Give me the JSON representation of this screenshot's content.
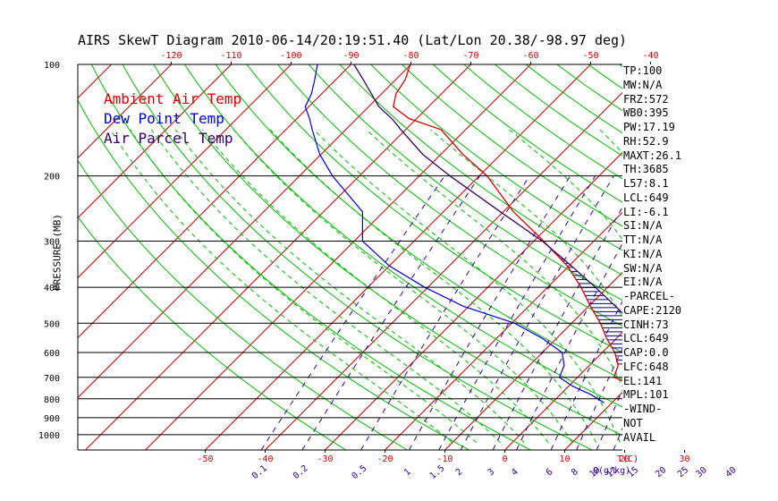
{
  "title": "AIRS SkewT Diagram 2010-06-14/20:19:51.40 (Lat/Lon 20.38/-98.97 deg)",
  "legend": {
    "ambient": "Ambient Air Temp",
    "dewpoint": "Dew Point Temp",
    "parcel": "Air Parcel Temp"
  },
  "colors": {
    "ambient": "#dd0000",
    "dewpoint": "#0000dd",
    "parcel": "#330066",
    "isotherm": "#cc0000",
    "dry_adiabat": "#00bb00",
    "moist_adiabat": "#00bb00",
    "mixing_ratio": "#330099",
    "hatch": "#000080"
  },
  "indices": [
    "TP:100",
    "MW:N/A",
    "FRZ:572",
    "WB0:395",
    "PW:17.19",
    "RH:52.9",
    "MAXT:26.1",
    "TH:3685",
    "L57:8.1",
    "LCL:649",
    "LI:-6.1",
    "SI:N/A",
    "TT:N/A",
    "KI:N/A",
    "SW:N/A",
    "EI:N/A",
    "-PARCEL-",
    "CAPE:2120",
    "CINH:73",
    "LCL:649",
    "CAP:0.0",
    "LFC:648",
    "EL:141",
    "MPL:101",
    "-WIND-",
    "NOT",
    "AVAIL"
  ],
  "chart_data": {
    "type": "line",
    "title": "AIRS SkewT Diagram 2010-06-14/20:19:51.40 (Lat/Lon 20.38/-98.97 deg)",
    "ylabel": "PRESSURE (MB)",
    "xlabel": "T(C)",
    "mixing_ratio_unit": "Q(g/kg)",
    "y_scale": "log",
    "ylim": [
      1100,
      100
    ],
    "pressure_ticks": [
      100,
      200,
      300,
      400,
      500,
      600,
      700,
      800,
      900,
      1000
    ],
    "bottom_temp_ticks": [
      -50,
      -40,
      -30,
      -20,
      -10,
      0,
      10,
      20,
      30
    ],
    "top_temp_ticks": [
      -120,
      -110,
      -100,
      -90,
      -80,
      -70,
      -60,
      -50,
      -40
    ],
    "mixing_ratio_ticks": [
      "0.1",
      "0.2",
      "0.5",
      "1",
      "1.5",
      "2",
      "3",
      "4",
      "6",
      "8",
      "10",
      "12",
      "15",
      "20",
      "25",
      "30",
      "40"
    ],
    "grid": true,
    "series": [
      {
        "name": "Ambient Air Temp",
        "points": [
          [
            820,
            30.1
          ],
          [
            780,
            19.9
          ],
          [
            740,
            11.2
          ],
          [
            700,
            6.1
          ],
          [
            650,
            4.8
          ],
          [
            600,
            2.1
          ],
          [
            550,
            -1.6
          ],
          [
            500,
            -5.2
          ],
          [
            450,
            -9.7
          ],
          [
            400,
            -14.4
          ],
          [
            350,
            -20.3
          ],
          [
            300,
            -28.4
          ],
          [
            250,
            -38.3
          ],
          [
            200,
            -48.7
          ],
          [
            175,
            -56.3
          ],
          [
            150,
            -64.1
          ],
          [
            140,
            -71.3
          ],
          [
            130,
            -75.9
          ],
          [
            120,
            -77.6
          ],
          [
            110,
            -78.4
          ],
          [
            100,
            -80.1
          ]
        ]
      },
      {
        "name": "Dew Point Temp",
        "points": [
          [
            820,
            8.7
          ],
          [
            780,
            5.2
          ],
          [
            740,
            0.7
          ],
          [
            700,
            -3.0
          ],
          [
            650,
            -4.2
          ],
          [
            600,
            -6.7
          ],
          [
            550,
            -12.3
          ],
          [
            500,
            -19.5
          ],
          [
            450,
            -30.9
          ],
          [
            400,
            -40.5
          ],
          [
            350,
            -50.0
          ],
          [
            300,
            -58.6
          ],
          [
            250,
            -63.5
          ],
          [
            200,
            -74.5
          ],
          [
            175,
            -80.2
          ],
          [
            150,
            -85.6
          ],
          [
            140,
            -87.9
          ],
          [
            130,
            -90.6
          ],
          [
            120,
            -91.7
          ],
          [
            110,
            -93.5
          ],
          [
            100,
            -95.6
          ]
        ]
      },
      {
        "name": "Air Parcel Temp",
        "points": [
          [
            820,
            30.1
          ],
          [
            760,
            22.7
          ],
          [
            700,
            17.5
          ],
          [
            649,
            13.9
          ],
          [
            600,
            9.8
          ],
          [
            550,
            5.3
          ],
          [
            500,
            0.2
          ],
          [
            450,
            -5.5
          ],
          [
            400,
            -12.0
          ],
          [
            350,
            -19.6
          ],
          [
            300,
            -28.6
          ],
          [
            250,
            -40.5
          ],
          [
            200,
            -54.9
          ],
          [
            175,
            -63.0
          ],
          [
            150,
            -70.8
          ],
          [
            141,
            -73.8
          ],
          [
            130,
            -78.3
          ],
          [
            120,
            -81.7
          ],
          [
            110,
            -85.4
          ],
          [
            100,
            -89.5
          ]
        ]
      }
    ]
  }
}
